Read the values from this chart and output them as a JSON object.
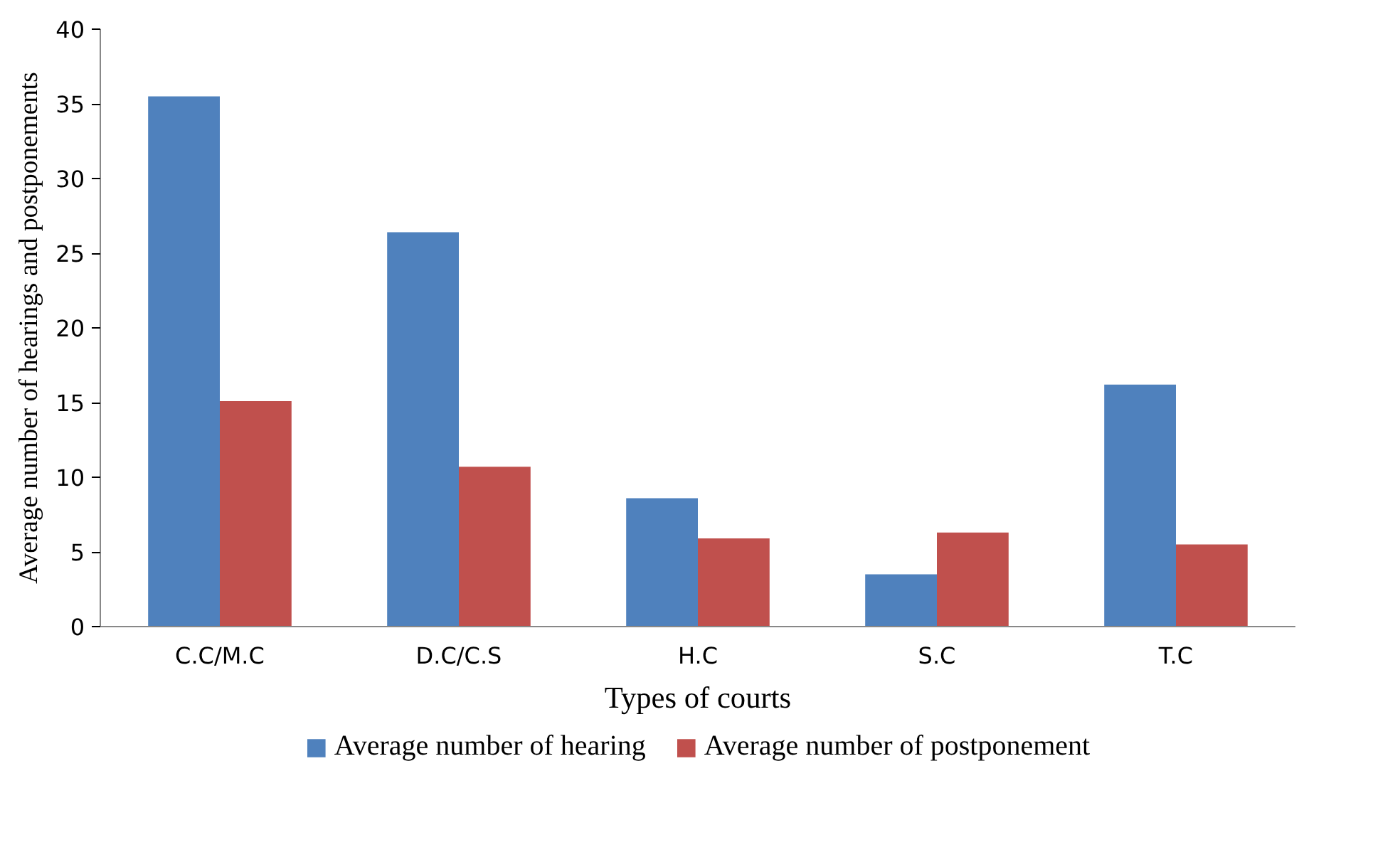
{
  "chart_data": {
    "type": "bar",
    "xlabel": "Types of courts",
    "ylabel": "Average number of hearings and postponements",
    "categories": [
      "C.C/M.C",
      "D.C/C.S",
      "H.C",
      "S.C",
      "T.C"
    ],
    "series": [
      {
        "name": "Average number of hearing",
        "color": "#4f81bd",
        "values": [
          35.5,
          26.4,
          8.6,
          3.5,
          16.2
        ]
      },
      {
        "name": "Average number of postponement",
        "color": "#c0504d",
        "values": [
          15.1,
          10.7,
          5.9,
          6.3,
          5.5
        ]
      }
    ],
    "ylim": [
      0,
      40
    ],
    "yticks": [
      0,
      5,
      10,
      15,
      20,
      25,
      30,
      35,
      40
    ],
    "grid": false,
    "legend": "bottom"
  }
}
